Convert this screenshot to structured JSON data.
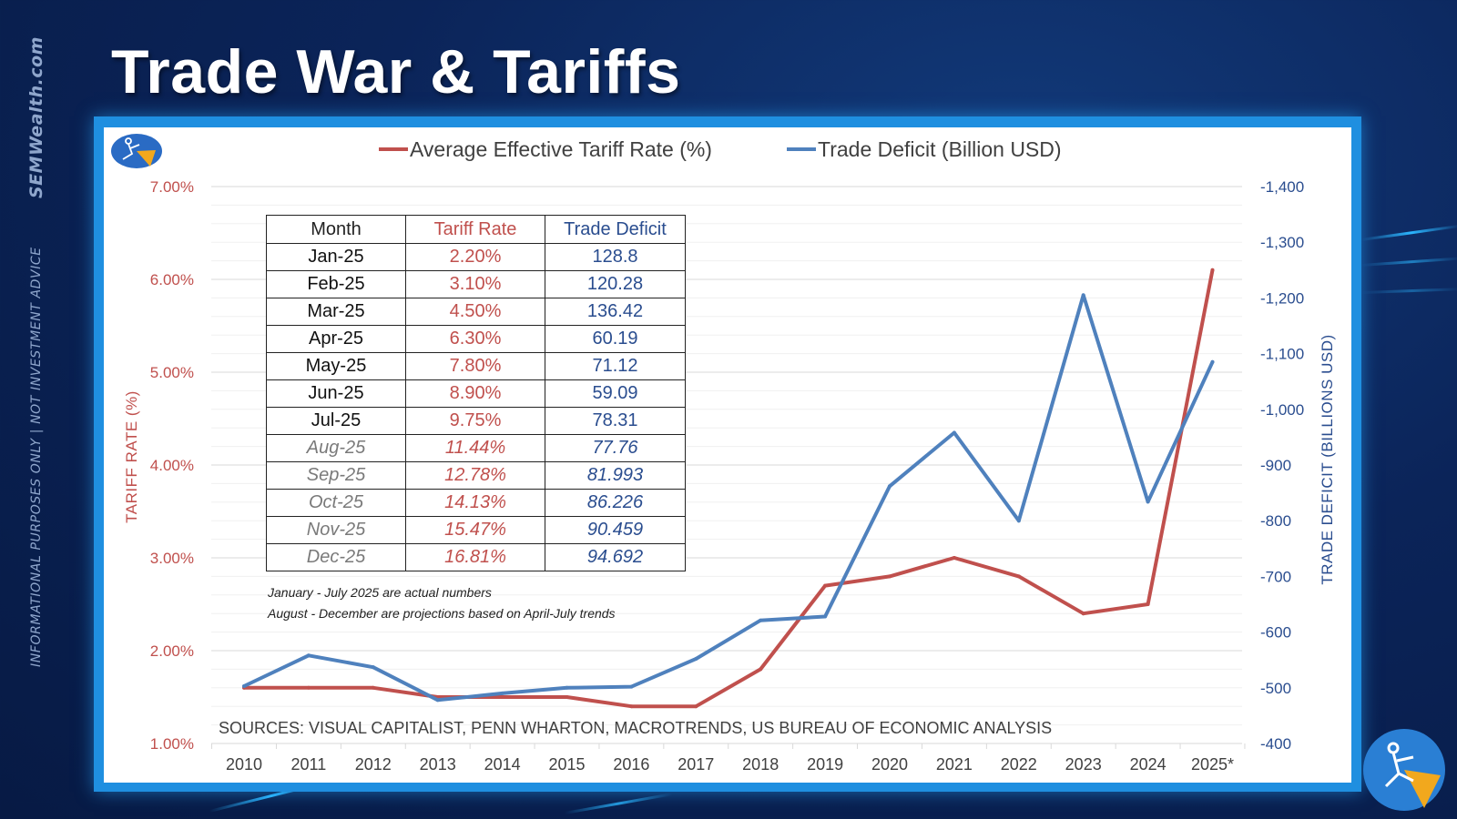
{
  "title": "Trade War & Tariffs",
  "side_brand": "SEMWealth.com",
  "side_disclaimer": "INFORMATIONAL PURPOSES ONLY | NOT INVESTMENT ADVICE",
  "colors": {
    "tariff": "#c0504d",
    "deficit": "#4f81bd",
    "background": "#0b2459",
    "frame": "#1f8fe0"
  },
  "table": {
    "headers": [
      "Month",
      "Tariff Rate",
      "Trade Deficit"
    ],
    "rows": [
      {
        "month": "Jan-25",
        "tariff": "2.20%",
        "deficit": "128.8",
        "projected": false
      },
      {
        "month": "Feb-25",
        "tariff": "3.10%",
        "deficit": "120.28",
        "projected": false
      },
      {
        "month": "Mar-25",
        "tariff": "4.50%",
        "deficit": "136.42",
        "projected": false
      },
      {
        "month": "Apr-25",
        "tariff": "6.30%",
        "deficit": "60.19",
        "projected": false
      },
      {
        "month": "May-25",
        "tariff": "7.80%",
        "deficit": "71.12",
        "projected": false
      },
      {
        "month": "Jun-25",
        "tariff": "8.90%",
        "deficit": "59.09",
        "projected": false
      },
      {
        "month": "Jul-25",
        "tariff": "9.75%",
        "deficit": "78.31",
        "projected": false
      },
      {
        "month": "Aug-25",
        "tariff": "11.44%",
        "deficit": "77.76",
        "projected": true
      },
      {
        "month": "Sep-25",
        "tariff": "12.78%",
        "deficit": "81.993",
        "projected": true
      },
      {
        "month": "Oct-25",
        "tariff": "14.13%",
        "deficit": "86.226",
        "projected": true
      },
      {
        "month": "Nov-25",
        "tariff": "15.47%",
        "deficit": "90.459",
        "projected": true
      },
      {
        "month": "Dec-25",
        "tariff": "16.81%",
        "deficit": "94.692",
        "projected": true
      }
    ],
    "notes": [
      "January - July 2025 are actual numbers",
      "August - December are projections based on April-July trends"
    ]
  },
  "chart_data": {
    "type": "line",
    "legend": [
      "Average Effective Tariff Rate (%)",
      "Trade Deficit (Billion USD)"
    ],
    "legend_position": "top-center",
    "categories": [
      "2010",
      "2011",
      "2012",
      "2013",
      "2014",
      "2015",
      "2016",
      "2017",
      "2018",
      "2019",
      "2020",
      "2021",
      "2022",
      "2023",
      "2024",
      "2025*"
    ],
    "series": [
      {
        "name": "Average Effective Tariff Rate (%)",
        "axis": "left",
        "values": [
          1.6,
          1.6,
          1.6,
          1.5,
          1.5,
          1.5,
          1.4,
          1.4,
          1.8,
          2.7,
          2.8,
          3.0,
          2.8,
          2.4,
          2.5,
          6.1
        ]
      },
      {
        "name": "Trade Deficit (Billion USD)",
        "axis": "right",
        "values": [
          -503,
          -558,
          -537,
          -478,
          -490,
          -500,
          -502,
          -552,
          -621,
          -628,
          -862,
          -958,
          -800,
          -1205,
          -834,
          -1085
        ]
      }
    ],
    "ylabel_left": "TARIFF RATE (%)",
    "ylabel_right": "TRADE DEFICIT (BILLIONS USD)",
    "ylim_left": [
      1,
      7
    ],
    "ylim_right": [
      -400,
      -1400
    ],
    "yticks_left": [
      "7.00%",
      "6.00%",
      "5.00%",
      "4.00%",
      "3.00%",
      "2.00%",
      "1.00%"
    ],
    "yticks_right": [
      "-1,400",
      "-1,300",
      "-1,200",
      "-1,100",
      "-1,000",
      "-900",
      "-800",
      "-700",
      "-600",
      "-500",
      "-400"
    ],
    "source": "SOURCES: VISUAL CAPITALIST, PENN WHARTON, MACROTRENDS, US BUREAU OF ECONOMIC ANALYSIS",
    "grid": true
  }
}
